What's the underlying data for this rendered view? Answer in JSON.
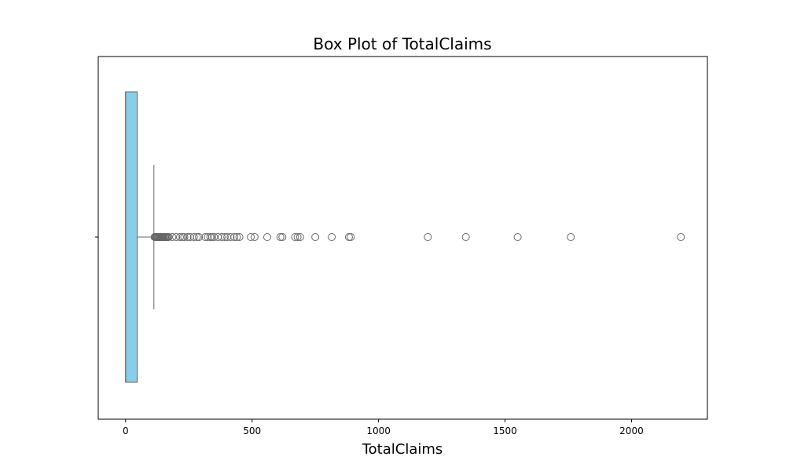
{
  "chart_data": {
    "type": "box",
    "title": "Box Plot of TotalClaims",
    "xlabel": "TotalClaims",
    "ylabel": "",
    "xlim": [
      -108,
      2300
    ],
    "xticks": [
      0,
      500,
      1000,
      1500,
      2000
    ],
    "grid": false,
    "orientation": "horizontal",
    "box": {
      "min": 0,
      "q1": 0,
      "median": 0,
      "q3": 46,
      "whisker_low": 0,
      "whisker_high": 112
    },
    "outliers": [
      115,
      118,
      121,
      124,
      127,
      130,
      133,
      136,
      139,
      142,
      145,
      148,
      151,
      155,
      158,
      162,
      166,
      170,
      185,
      200,
      215,
      225,
      232,
      245,
      255,
      270,
      282,
      290,
      315,
      325,
      335,
      342,
      350,
      365,
      380,
      392,
      402,
      415,
      430,
      440,
      450,
      495,
      510,
      560,
      612,
      620,
      670,
      680,
      690,
      750,
      815,
      883,
      890,
      1195,
      1345,
      1550,
      1760,
      2195
    ],
    "colors": {
      "box_fill": "#87ceeb",
      "line": "#666666",
      "frame": "#000000"
    }
  }
}
